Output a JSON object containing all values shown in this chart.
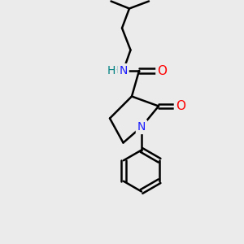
{
  "bg_color": "#ebebeb",
  "atom_colors": {
    "C": "#000000",
    "N": "#1a1aff",
    "O": "#ff0000",
    "H": "#008080"
  },
  "bond_color": "#000000",
  "bond_width": 1.8,
  "figsize": [
    3.0,
    3.0
  ],
  "dpi": 100,
  "xlim": [
    0,
    10
  ],
  "ylim": [
    0,
    10
  ]
}
